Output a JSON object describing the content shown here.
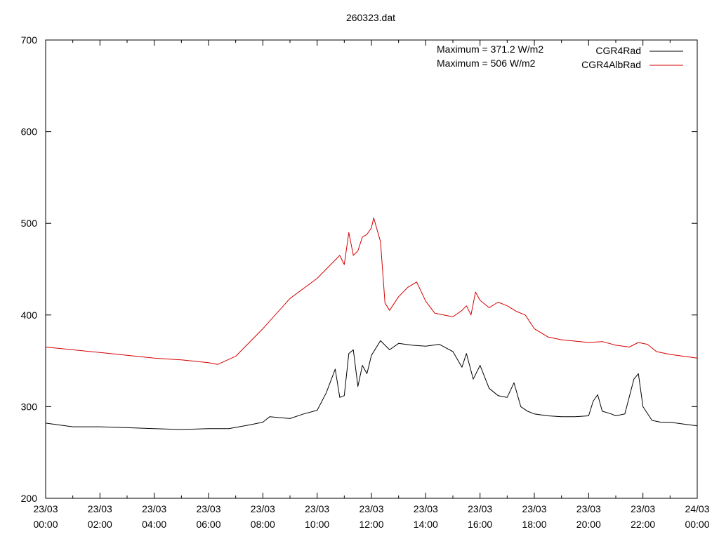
{
  "chart_data": {
    "type": "line",
    "title": "260323.dat",
    "xlabel": "",
    "ylabel": "",
    "ylim": [
      200,
      700
    ],
    "xlim": [
      "23/03 00:00",
      "24/03 00:00"
    ],
    "y_ticks": [
      200,
      300,
      400,
      500,
      600,
      700
    ],
    "x_ticks": [
      {
        "date": "23/03",
        "time": "00:00"
      },
      {
        "date": "23/03",
        "time": "02:00"
      },
      {
        "date": "23/03",
        "time": "04:00"
      },
      {
        "date": "23/03",
        "time": "06:00"
      },
      {
        "date": "23/03",
        "time": "08:00"
      },
      {
        "date": "23/03",
        "time": "10:00"
      },
      {
        "date": "23/03",
        "time": "12:00"
      },
      {
        "date": "23/03",
        "time": "14:00"
      },
      {
        "date": "23/03",
        "time": "16:00"
      },
      {
        "date": "23/03",
        "time": "18:00"
      },
      {
        "date": "23/03",
        "time": "20:00"
      },
      {
        "date": "23/03",
        "time": "22:00"
      },
      {
        "date": "24/03",
        "time": "00:00"
      }
    ],
    "annotations": [
      "Maximum = 371.2 W/m2",
      "Maximum = 506 W/m2"
    ],
    "grid": false,
    "legend_position": "top-right",
    "series": [
      {
        "name": "CGR4Rad",
        "color": "#000000",
        "x": [
          "23/03 00:00",
          "23/03 01:00",
          "23/03 02:00",
          "23/03 03:00",
          "23/03 04:00",
          "23/03 05:00",
          "23/03 06:00",
          "23/03 06:45",
          "23/03 07:30",
          "23/03 08:00",
          "23/03 08:15",
          "23/03 09:00",
          "23/03 09:30",
          "23/03 10:00",
          "23/03 10:20",
          "23/03 10:40",
          "23/03 10:50",
          "23/03 11:00",
          "23/03 11:10",
          "23/03 11:20",
          "23/03 11:30",
          "23/03 11:40",
          "23/03 11:50",
          "23/03 12:00",
          "23/03 12:20",
          "23/03 12:40",
          "23/03 13:00",
          "23/03 13:30",
          "23/03 14:00",
          "23/03 14:30",
          "23/03 15:00",
          "23/03 15:20",
          "23/03 15:30",
          "23/03 15:45",
          "23/03 16:00",
          "23/03 16:20",
          "23/03 16:40",
          "23/03 17:00",
          "23/03 17:15",
          "23/03 17:30",
          "23/03 17:45",
          "23/03 18:00",
          "23/03 18:30",
          "23/03 19:00",
          "23/03 19:30",
          "23/03 20:00",
          "23/03 20:10",
          "23/03 20:20",
          "23/03 20:30",
          "23/03 20:50",
          "23/03 21:00",
          "23/03 21:20",
          "23/03 21:40",
          "23/03 21:50",
          "23/03 22:00",
          "23/03 22:20",
          "23/03 22:40",
          "23/03 23:00",
          "23/03 23:30",
          "24/03 00:00"
        ],
        "values": [
          282,
          278,
          278,
          277,
          276,
          275,
          276,
          276,
          280,
          283,
          289,
          287,
          292,
          296,
          315,
          341,
          310,
          312,
          358,
          362,
          322,
          345,
          336,
          356,
          372,
          362,
          369,
          367,
          366,
          368,
          360,
          343,
          358,
          330,
          345,
          320,
          312,
          310,
          326,
          300,
          295,
          292,
          290,
          289,
          289,
          290,
          306,
          313,
          295,
          292,
          290,
          292,
          330,
          336,
          300,
          285,
          283,
          283,
          281,
          279
        ]
      },
      {
        "name": "CGR4AlbRad",
        "color": "#d40000",
        "x": [
          "23/03 00:00",
          "23/03 01:00",
          "23/03 02:00",
          "23/03 03:00",
          "23/03 04:00",
          "23/03 05:00",
          "23/03 06:00",
          "23/03 06:20",
          "23/03 07:00",
          "23/03 08:00",
          "23/03 09:00",
          "23/03 10:00",
          "23/03 10:30",
          "23/03 10:50",
          "23/03 11:00",
          "23/03 11:10",
          "23/03 11:20",
          "23/03 11:30",
          "23/03 11:40",
          "23/03 11:50",
          "23/03 12:00",
          "23/03 12:05",
          "23/03 12:20",
          "23/03 12:30",
          "23/03 12:40",
          "23/03 13:00",
          "23/03 13:20",
          "23/03 13:40",
          "23/03 14:00",
          "23/03 14:20",
          "23/03 14:40",
          "23/03 15:00",
          "23/03 15:20",
          "23/03 15:30",
          "23/03 15:40",
          "23/03 15:50",
          "23/03 16:00",
          "23/03 16:20",
          "23/03 16:40",
          "23/03 17:00",
          "23/03 17:20",
          "23/03 17:40",
          "23/03 18:00",
          "23/03 18:30",
          "23/03 19:00",
          "23/03 20:00",
          "23/03 20:30",
          "23/03 21:00",
          "23/03 21:30",
          "23/03 21:50",
          "23/03 22:10",
          "23/03 22:30",
          "23/03 23:00",
          "24/03 00:00"
        ],
        "values": [
          365,
          362,
          359,
          356,
          353,
          351,
          348,
          346,
          355,
          385,
          418,
          440,
          455,
          465,
          455,
          490,
          465,
          470,
          485,
          488,
          495,
          506,
          480,
          413,
          405,
          420,
          430,
          436,
          415,
          402,
          400,
          398,
          405,
          410,
          400,
          425,
          416,
          408,
          414,
          410,
          404,
          400,
          385,
          376,
          373,
          370,
          371,
          367,
          365,
          370,
          368,
          360,
          357,
          353
        ]
      }
    ]
  }
}
